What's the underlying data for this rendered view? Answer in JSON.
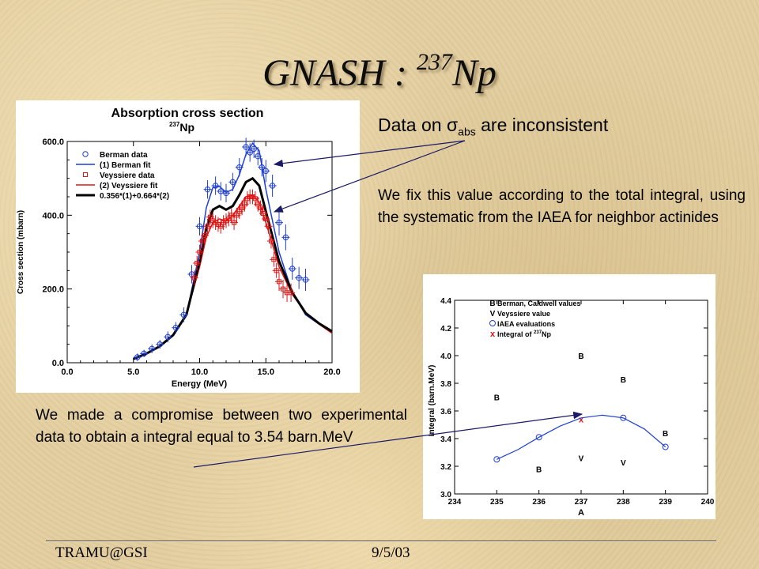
{
  "slide": {
    "title_main": "GNASH : ",
    "title_mass": "237",
    "title_element": "Np",
    "note_inconsistent_prefix": "Data on σ",
    "note_inconsistent_sub": "abs",
    "note_inconsistent_suffix": " are inconsistent",
    "note_fix": "We fix this value according to the total integral, using the systematic from the IAEA for neighbor actinides",
    "note_compromise": "We made a compromise between two experimental data to obtain a integral equal to 3.54 barn.MeV",
    "footer_left": "TRAMU@GSI",
    "footer_date": "9/5/03",
    "arrow_color": "#1a1a66"
  },
  "chart_data": [
    {
      "type": "line",
      "title": "Absorption cross section",
      "subtitle_mass": "237",
      "subtitle_element": "Np",
      "xlabel": "Energy (MeV)",
      "ylabel": "Cross section (mbarn)",
      "xlim": [
        0,
        20
      ],
      "ylim": [
        0,
        600
      ],
      "xticks": [
        0,
        5,
        10,
        15,
        20
      ],
      "xtick_labels": [
        "0.0",
        "5.0",
        "10.0",
        "15.0",
        "20.0"
      ],
      "yticks": [
        0,
        200,
        400,
        600
      ],
      "ytick_labels": [
        "0.0",
        "200.0",
        "400.0",
        "600.0"
      ],
      "legend_position": "top-left",
      "series": [
        {
          "name": "Berman data",
          "kind": "points",
          "marker": "circle",
          "color": "#1f3fd0",
          "x": [
            5.3,
            5.8,
            6.4,
            7.0,
            7.6,
            8.2,
            8.8,
            9.4,
            10.0,
            10.6,
            11.2,
            11.6,
            12.0,
            12.5,
            13.0,
            13.5,
            13.8,
            14.1,
            14.4,
            14.7,
            15.0,
            15.5,
            16.0,
            16.5,
            17.0,
            17.5,
            18.0
          ],
          "y": [
            15,
            25,
            38,
            50,
            70,
            95,
            130,
            240,
            370,
            470,
            480,
            465,
            460,
            490,
            530,
            585,
            570,
            580,
            560,
            530,
            520,
            480,
            380,
            340,
            255,
            230,
            225
          ],
          "err": [
            10,
            10,
            12,
            12,
            15,
            15,
            20,
            25,
            25,
            25,
            25,
            25,
            25,
            25,
            25,
            25,
            25,
            25,
            25,
            25,
            30,
            30,
            35,
            35,
            30,
            30,
            30
          ]
        },
        {
          "name": "(1) Berman fit",
          "kind": "line",
          "color": "#1f3fd0",
          "width": 1.5,
          "x": [
            5,
            6,
            7,
            8,
            9,
            10,
            10.5,
            11,
            11.5,
            12,
            12.5,
            13,
            13.5,
            14,
            14.5,
            15,
            16,
            17,
            18,
            19,
            20
          ],
          "y": [
            10,
            25,
            45,
            75,
            130,
            300,
            420,
            475,
            478,
            462,
            470,
            510,
            565,
            595,
            575,
            470,
            300,
            190,
            130,
            105,
            85
          ]
        },
        {
          "name": "Veyssiere data",
          "kind": "points",
          "marker": "square",
          "color": "#e01515",
          "x": [
            9.6,
            9.8,
            10.0,
            10.2,
            10.4,
            10.6,
            10.8,
            11.0,
            11.2,
            11.4,
            11.6,
            11.8,
            12.0,
            12.2,
            12.4,
            12.6,
            12.8,
            13.0,
            13.2,
            13.4,
            13.6,
            13.8,
            14.0,
            14.2,
            14.4,
            14.6,
            14.8,
            15.0,
            15.2,
            15.4,
            15.6,
            15.8,
            16.0,
            16.3,
            16.6,
            16.9
          ],
          "y": [
            230,
            270,
            300,
            330,
            345,
            370,
            395,
            385,
            380,
            375,
            370,
            380,
            385,
            390,
            400,
            380,
            400,
            410,
            420,
            430,
            445,
            450,
            450,
            445,
            430,
            420,
            405,
            390,
            370,
            330,
            280,
            250,
            220,
            200,
            190,
            190
          ],
          "err": [
            20,
            20,
            20,
            20,
            20,
            20,
            20,
            20,
            20,
            20,
            20,
            20,
            20,
            20,
            20,
            20,
            20,
            20,
            20,
            20,
            20,
            20,
            20,
            20,
            20,
            20,
            20,
            20,
            20,
            20,
            20,
            20,
            25,
            25,
            25,
            25
          ]
        },
        {
          "name": "(2) Veyssiere fit",
          "kind": "line",
          "color": "#e01515",
          "width": 1.5,
          "x": [
            5,
            6,
            7,
            8,
            9,
            10,
            10.5,
            11,
            11.5,
            12,
            12.5,
            13,
            13.5,
            14,
            14.5,
            15,
            16,
            17,
            18,
            19,
            20
          ],
          "y": [
            10,
            25,
            45,
            75,
            130,
            260,
            340,
            380,
            390,
            385,
            400,
            425,
            450,
            455,
            435,
            380,
            260,
            185,
            135,
            105,
            80
          ]
        },
        {
          "name": "0.356*(1)+0.664*(2)",
          "kind": "line",
          "color": "#000000",
          "width": 3,
          "x": [
            5,
            6,
            7,
            8,
            9,
            10,
            10.5,
            11,
            11.5,
            12,
            12.5,
            13,
            13.5,
            14,
            14.5,
            15,
            16,
            17,
            18,
            19,
            20
          ],
          "y": [
            10,
            25,
            45,
            75,
            130,
            275,
            365,
            415,
            425,
            415,
            425,
            455,
            490,
            500,
            480,
            410,
            275,
            190,
            135,
            107,
            85
          ]
        }
      ]
    },
    {
      "type": "scatter",
      "xlabel": "A",
      "ylabel": "Integral (barn.MeV)",
      "xlim": [
        234,
        240
      ],
      "ylim": [
        3.0,
        4.4
      ],
      "xticks": [
        234,
        235,
        236,
        237,
        238,
        239,
        240
      ],
      "yticks": [
        3.0,
        3.2,
        3.4,
        3.6,
        3.8,
        4.0,
        4.2,
        4.4
      ],
      "ytick_labels": [
        "3.0",
        "3.2",
        "3.4",
        "3.6",
        "3.8",
        "4.0",
        "4.2",
        "4.4"
      ],
      "legend_position": "top-left",
      "series": [
        {
          "name": "Berman, Caldwell values",
          "marker": "letter-B",
          "color": "#000000",
          "x": [
            235,
            236,
            237,
            238,
            239
          ],
          "y": [
            3.7,
            3.18,
            4.0,
            3.83,
            3.44
          ]
        },
        {
          "name": "Veyssiere value",
          "marker": "letter-V",
          "color": "#000000",
          "x": [
            237,
            238
          ],
          "y": [
            3.26,
            3.23
          ]
        },
        {
          "name": "IAEA evaluations",
          "marker": "circle",
          "color": "#1f3fd0",
          "x": [
            235,
            236,
            238,
            239
          ],
          "y": [
            3.25,
            3.41,
            3.55,
            3.34
          ]
        },
        {
          "name": "Integral of 237Np",
          "legend_prefix": "Integral of ",
          "legend_mass": "237",
          "legend_element": "Np",
          "marker": "x",
          "color": "#e01515",
          "x": [
            237
          ],
          "y": [
            3.54
          ]
        },
        {
          "kind": "curve",
          "color": "#1f3fd0",
          "x": [
            235,
            235.5,
            236,
            236.5,
            237,
            237.5,
            238,
            238.5,
            239
          ],
          "y": [
            3.25,
            3.32,
            3.41,
            3.49,
            3.55,
            3.57,
            3.55,
            3.47,
            3.34
          ]
        }
      ]
    }
  ]
}
